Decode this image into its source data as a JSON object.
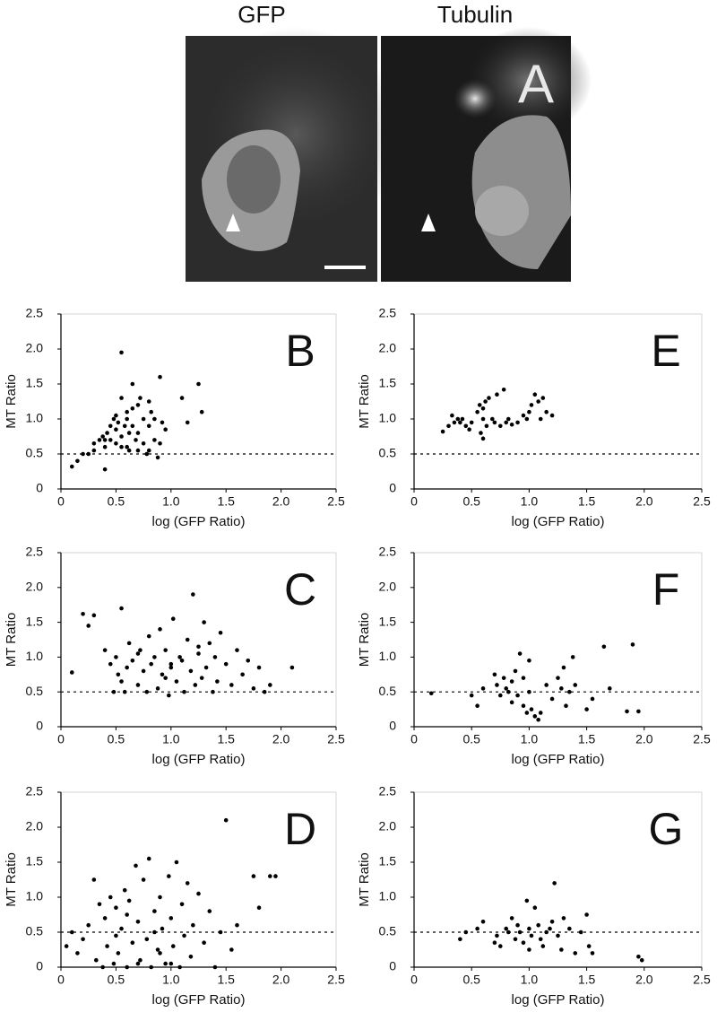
{
  "panel_a": {
    "labels": [
      "GFP",
      "Tubulin"
    ],
    "panel_label": "A"
  },
  "chart_data": [
    {
      "type": "scatter",
      "panel_label": "B",
      "x_label": "log (GFP Ratio)",
      "y_label": "MT Ratio",
      "xlim": [
        0,
        2.5
      ],
      "ylim": [
        0,
        2.5
      ],
      "xticks": [
        0,
        0.5,
        {
          "value": 1,
          "label": "1.0"
        },
        1.5,
        {
          "value": 2,
          "label": "2.0"
        },
        2.5
      ],
      "yticks": [
        0,
        0.5,
        {
          "value": 1,
          "label": "1.0"
        },
        1.5,
        {
          "value": 2,
          "label": "2.0"
        },
        2.5
      ],
      "reference_line": 0.5,
      "color": "#000000",
      "x": [
        0.1,
        0.15,
        0.2,
        0.25,
        0.3,
        0.3,
        0.35,
        0.38,
        0.4,
        0.4,
        0.42,
        0.45,
        0.45,
        0.48,
        0.5,
        0.5,
        0.5,
        0.52,
        0.55,
        0.55,
        0.55,
        0.58,
        0.6,
        0.6,
        0.6,
        0.62,
        0.62,
        0.65,
        0.65,
        0.68,
        0.7,
        0.7,
        0.7,
        0.72,
        0.75,
        0.75,
        0.78,
        0.8,
        0.8,
        0.8,
        0.82,
        0.85,
        0.85,
        0.88,
        0.9,
        0.9,
        0.92,
        0.95,
        1.1,
        1.15,
        1.25,
        1.28,
        0.55,
        0.65,
        0.4
      ],
      "values": [
        0.32,
        0.4,
        0.5,
        0.5,
        0.55,
        0.65,
        0.7,
        0.75,
        0.6,
        0.28,
        0.8,
        0.9,
        0.7,
        1.0,
        0.65,
        0.85,
        1.05,
        0.95,
        1.95,
        0.75,
        0.6,
        0.9,
        1.0,
        1.1,
        0.6,
        0.55,
        0.8,
        1.5,
        0.9,
        0.7,
        1.2,
        0.55,
        0.8,
        1.3,
        0.65,
        1.0,
        0.5,
        1.25,
        0.9,
        0.55,
        1.1,
        0.7,
        1.0,
        0.45,
        0.65,
        1.6,
        0.95,
        0.85,
        1.3,
        0.95,
        1.5,
        1.1,
        1.3,
        1.15,
        0.7
      ]
    },
    {
      "type": "scatter",
      "panel_label": "C",
      "x_label": "log (GFP Ratio)",
      "y_label": "MT Ratio",
      "xlim": [
        0,
        2.5
      ],
      "ylim": [
        0,
        2.5
      ],
      "xticks": [
        0,
        0.5,
        {
          "value": 1,
          "label": "1.0"
        },
        1.5,
        {
          "value": 2,
          "label": "2.0"
        },
        2.5
      ],
      "yticks": [
        0,
        0.5,
        {
          "value": 1,
          "label": "1.0"
        },
        1.5,
        {
          "value": 2,
          "label": "2.0"
        },
        2.5
      ],
      "reference_line": 0.5,
      "color": "#000000",
      "x": [
        0.1,
        0.2,
        0.25,
        0.3,
        0.4,
        0.45,
        0.48,
        0.5,
        0.52,
        0.55,
        0.58,
        0.6,
        0.62,
        0.65,
        0.7,
        0.72,
        0.75,
        0.78,
        0.8,
        0.82,
        0.85,
        0.88,
        0.9,
        0.92,
        0.95,
        0.98,
        1.0,
        1.02,
        1.05,
        1.08,
        1.1,
        1.12,
        1.15,
        1.18,
        1.2,
        1.22,
        1.25,
        1.28,
        1.3,
        1.32,
        1.35,
        1.38,
        1.4,
        1.42,
        1.45,
        1.5,
        1.55,
        1.6,
        1.65,
        1.7,
        1.75,
        1.8,
        1.85,
        1.9,
        2.1,
        0.55,
        0.95,
        1.25,
        0.7,
        1.0
      ],
      "values": [
        0.78,
        1.62,
        1.45,
        1.6,
        1.1,
        0.9,
        0.5,
        1.0,
        0.75,
        1.7,
        0.5,
        0.85,
        1.2,
        0.95,
        0.6,
        1.1,
        0.8,
        0.5,
        1.3,
        0.9,
        1.0,
        0.55,
        1.4,
        0.75,
        1.1,
        0.45,
        0.85,
        1.55,
        0.65,
        1.0,
        0.95,
        0.5,
        1.25,
        0.8,
        1.9,
        0.6,
        1.05,
        0.7,
        1.5,
        0.85,
        1.2,
        0.5,
        1.0,
        0.65,
        1.35,
        0.9,
        0.6,
        1.1,
        0.75,
        0.95,
        0.55,
        0.85,
        0.5,
        0.6,
        0.85,
        0.65,
        0.7,
        1.15,
        1.05,
        0.9
      ]
    },
    {
      "type": "scatter",
      "panel_label": "D",
      "x_label": "log (GFP Ratio)",
      "y_label": "MT Ratio",
      "xlim": [
        0,
        2.5
      ],
      "ylim": [
        0,
        2.5
      ],
      "xticks": [
        0,
        0.5,
        {
          "value": 1,
          "label": "1.0"
        },
        1.5,
        {
          "value": 2,
          "label": "2.0"
        },
        2.5
      ],
      "yticks": [
        0,
        0.5,
        {
          "value": 1,
          "label": "1.0"
        },
        1.5,
        {
          "value": 2,
          "label": "2.0"
        },
        2.5
      ],
      "reference_line": 0.5,
      "color": "#000000",
      "x": [
        0.05,
        0.1,
        0.15,
        0.2,
        0.25,
        0.3,
        0.32,
        0.35,
        0.38,
        0.4,
        0.42,
        0.45,
        0.48,
        0.5,
        0.52,
        0.55,
        0.58,
        0.6,
        0.62,
        0.65,
        0.68,
        0.7,
        0.72,
        0.75,
        0.78,
        0.8,
        0.82,
        0.85,
        0.88,
        0.9,
        0.92,
        0.95,
        0.98,
        1.0,
        1.02,
        1.05,
        1.08,
        1.1,
        1.12,
        1.15,
        1.18,
        1.2,
        1.25,
        1.3,
        1.35,
        1.4,
        1.45,
        1.5,
        1.55,
        1.6,
        1.75,
        1.8,
        1.9,
        1.95,
        0.5,
        0.7,
        0.9,
        1.0,
        0.6,
        0.85
      ],
      "values": [
        0.3,
        0.5,
        0.2,
        0.4,
        0.6,
        1.25,
        0.1,
        0.9,
        0.0,
        0.7,
        0.3,
        1.0,
        0.05,
        0.85,
        0.2,
        0.55,
        1.1,
        0.0,
        0.95,
        0.35,
        1.45,
        0.65,
        0.1,
        1.25,
        0.4,
        1.55,
        0.0,
        0.8,
        0.25,
        1.0,
        0.55,
        0.05,
        1.3,
        0.7,
        0.3,
        1.5,
        0.0,
        0.9,
        0.45,
        1.2,
        0.15,
        0.6,
        1.05,
        0.35,
        0.8,
        0.0,
        0.5,
        2.1,
        0.25,
        0.6,
        1.3,
        0.85,
        1.3,
        1.3,
        0.45,
        0.05,
        0.2,
        0.05,
        0.75,
        0.5
      ]
    },
    {
      "type": "scatter",
      "panel_label": "E",
      "x_label": "log (GFP Ratio)",
      "y_label": "MT Ratio",
      "xlim": [
        0,
        2.5
      ],
      "ylim": [
        0,
        2.5
      ],
      "xticks": [
        0,
        0.5,
        {
          "value": 1,
          "label": "1.0"
        },
        1.5,
        {
          "value": 2,
          "label": "2.0"
        },
        2.5
      ],
      "yticks": [
        0,
        0.5,
        {
          "value": 1,
          "label": "1.0"
        },
        1.5,
        {
          "value": 2,
          "label": "2.0"
        },
        2.5
      ],
      "reference_line": 0.5,
      "color": "#000000",
      "x": [
        0.25,
        0.3,
        0.33,
        0.35,
        0.38,
        0.4,
        0.42,
        0.45,
        0.48,
        0.5,
        0.55,
        0.57,
        0.58,
        0.6,
        0.6,
        0.62,
        0.63,
        0.65,
        0.68,
        0.7,
        0.72,
        0.75,
        0.78,
        0.8,
        0.82,
        0.85,
        0.9,
        0.95,
        0.98,
        1.0,
        1.02,
        1.05,
        1.08,
        1.1,
        1.12,
        1.15,
        1.2,
        0.6
      ],
      "values": [
        0.82,
        0.9,
        1.05,
        0.95,
        1.0,
        0.95,
        1.0,
        0.9,
        0.85,
        0.95,
        1.1,
        1.2,
        0.8,
        0.72,
        1.0,
        1.25,
        0.9,
        1.3,
        1.0,
        0.95,
        1.35,
        0.9,
        1.42,
        0.95,
        1.0,
        0.92,
        0.95,
        1.05,
        1.0,
        1.1,
        1.2,
        1.35,
        1.25,
        1.0,
        1.3,
        1.1,
        1.05,
        1.15
      ]
    },
    {
      "type": "scatter",
      "panel_label": "F",
      "x_label": "log (GFP Ratio)",
      "y_label": "MT Ratio",
      "xlim": [
        0,
        2.5
      ],
      "ylim": [
        0,
        2.5
      ],
      "xticks": [
        0,
        0.5,
        {
          "value": 1,
          "label": "1.0"
        },
        1.5,
        {
          "value": 2,
          "label": "2.0"
        },
        2.5
      ],
      "yticks": [
        0,
        0.5,
        {
          "value": 1,
          "label": "1.0"
        },
        1.5,
        {
          "value": 2,
          "label": "2.0"
        },
        2.5
      ],
      "reference_line": 0.5,
      "color": "#000000",
      "x": [
        0.15,
        0.5,
        0.55,
        0.6,
        0.7,
        0.72,
        0.75,
        0.78,
        0.8,
        0.82,
        0.85,
        0.85,
        0.88,
        0.9,
        0.92,
        0.95,
        0.95,
        0.98,
        1.0,
        1.0,
        1.02,
        1.05,
        1.08,
        1.1,
        1.15,
        1.2,
        1.25,
        1.28,
        1.3,
        1.32,
        1.35,
        1.38,
        1.4,
        1.5,
        1.55,
        1.65,
        1.7,
        1.85,
        1.9,
        1.95
      ],
      "values": [
        0.48,
        0.45,
        0.3,
        0.55,
        0.75,
        0.6,
        0.45,
        0.7,
        0.55,
        0.5,
        0.65,
        0.35,
        0.8,
        0.45,
        1.05,
        0.7,
        0.3,
        0.2,
        0.95,
        0.5,
        0.25,
        0.15,
        0.1,
        0.2,
        0.6,
        0.4,
        0.7,
        0.55,
        0.85,
        0.3,
        0.5,
        1.0,
        0.6,
        0.25,
        0.4,
        1.15,
        0.55,
        0.22,
        1.18,
        0.22
      ]
    },
    {
      "type": "scatter",
      "panel_label": "G",
      "x_label": "log (GFP Ratio)",
      "y_label": "MT Ratio",
      "xlim": [
        0,
        2.5
      ],
      "ylim": [
        0,
        2.5
      ],
      "xticks": [
        0,
        0.5,
        {
          "value": 1,
          "label": "1.0"
        },
        1.5,
        {
          "value": 2,
          "label": "2.0"
        },
        2.5
      ],
      "yticks": [
        0,
        0.5,
        {
          "value": 1,
          "label": "1.0"
        },
        1.5,
        {
          "value": 2,
          "label": "2.0"
        },
        2.5
      ],
      "reference_line": 0.5,
      "color": "#000000",
      "x": [
        0.4,
        0.45,
        0.55,
        0.6,
        0.7,
        0.72,
        0.75,
        0.8,
        0.82,
        0.85,
        0.88,
        0.9,
        0.92,
        0.95,
        0.98,
        1.0,
        1.0,
        1.02,
        1.05,
        1.08,
        1.1,
        1.12,
        1.15,
        1.18,
        1.2,
        1.22,
        1.25,
        1.28,
        1.3,
        1.35,
        1.4,
        1.45,
        1.5,
        1.52,
        1.55,
        1.95,
        1.98
      ],
      "values": [
        0.4,
        0.5,
        0.55,
        0.65,
        0.35,
        0.45,
        0.3,
        0.55,
        0.5,
        0.7,
        0.4,
        0.6,
        0.5,
        0.35,
        0.95,
        0.55,
        0.25,
        0.45,
        0.85,
        0.6,
        0.4,
        0.3,
        0.5,
        0.55,
        0.65,
        1.2,
        0.45,
        0.25,
        0.7,
        0.55,
        0.2,
        0.5,
        0.75,
        0.3,
        0.2,
        0.15,
        0.1
      ]
    }
  ]
}
